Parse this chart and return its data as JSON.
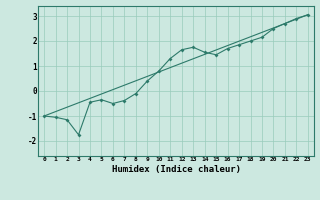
{
  "xlabel": "Humidex (Indice chaleur)",
  "background_color": "#cce8e0",
  "grid_color": "#99ccbb",
  "line_color": "#2d7a6a",
  "xlim": [
    -0.5,
    23.5
  ],
  "ylim": [
    -2.6,
    3.4
  ],
  "x_ticks": [
    0,
    1,
    2,
    3,
    4,
    5,
    6,
    7,
    8,
    9,
    10,
    11,
    12,
    13,
    14,
    15,
    16,
    17,
    18,
    19,
    20,
    21,
    22,
    23
  ],
  "y_ticks": [
    -2,
    -1,
    0,
    1,
    2,
    3
  ],
  "data_x": [
    0,
    1,
    2,
    3,
    4,
    5,
    6,
    7,
    8,
    9,
    10,
    11,
    12,
    13,
    14,
    15,
    16,
    17,
    18,
    19,
    20,
    21,
    22,
    23
  ],
  "data_y": [
    -1.0,
    -1.05,
    -1.15,
    -1.75,
    -0.45,
    -0.35,
    -0.5,
    -0.38,
    -0.1,
    0.4,
    0.8,
    1.3,
    1.65,
    1.75,
    1.55,
    1.45,
    1.7,
    1.85,
    2.0,
    2.15,
    2.5,
    2.7,
    2.9,
    3.05
  ],
  "trend_x0": 0,
  "trend_y0": -1.0,
  "trend_x1": 23,
  "trend_y1": 3.05
}
